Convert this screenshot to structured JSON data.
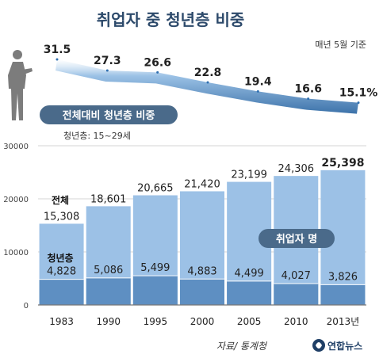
{
  "title": "취업자 중 청년층 비중",
  "note": "매년 5월 기준",
  "ratio_label": "전체대비 청년층 비중",
  "youth_definition": "청년층: 15~29세",
  "employed_label": "취업자 명",
  "total_label": "전체",
  "youth_label": "청년층",
  "source": "자료/ 통계청",
  "logo_text": "연합뉴스",
  "colors": {
    "title": "#2d4a6b",
    "band_light": "#8ab4dc",
    "band_dark": "#4d82b7",
    "line": "#2f6fb0",
    "pill": "#4a6a8a",
    "bar_top": "#9cc1e6",
    "bar_bottom": "#5e8fc2",
    "grid": "#d4d4d4",
    "text": "#222222"
  },
  "chart_data": [
    {
      "type": "line",
      "title": "전체대비 청년층 비중",
      "categories": [
        "1983",
        "1990",
        "1995",
        "2000",
        "2005",
        "2010",
        "2013년"
      ],
      "values": [
        31.5,
        27.3,
        26.6,
        22.8,
        19.4,
        16.6,
        15.1
      ],
      "value_labels": [
        "31.5",
        "27.3",
        "26.6",
        "22.8",
        "19.4",
        "16.6",
        "15.1%"
      ],
      "unit": "%"
    },
    {
      "type": "bar",
      "title": "취업자 명",
      "categories": [
        "1983",
        "1990",
        "1995",
        "2000",
        "2005",
        "2010",
        "2013년"
      ],
      "series": [
        {
          "name": "전체",
          "values": [
            15308,
            18601,
            20665,
            21420,
            23199,
            24306,
            25398
          ],
          "labels": [
            "15,308",
            "18,601",
            "20,665",
            "21,420",
            "23,199",
            "24,306",
            "25,398"
          ]
        },
        {
          "name": "청년층",
          "values": [
            4828,
            5086,
            5499,
            4883,
            4499,
            4027,
            3826
          ],
          "labels": [
            "4,828",
            "5,086",
            "5,499",
            "4,883",
            "4,499",
            "4,027",
            "3,826"
          ]
        }
      ],
      "ylim": [
        0,
        30000
      ],
      "yticks": [
        "0",
        "10000",
        "20000",
        "30000"
      ],
      "grid": true
    }
  ]
}
